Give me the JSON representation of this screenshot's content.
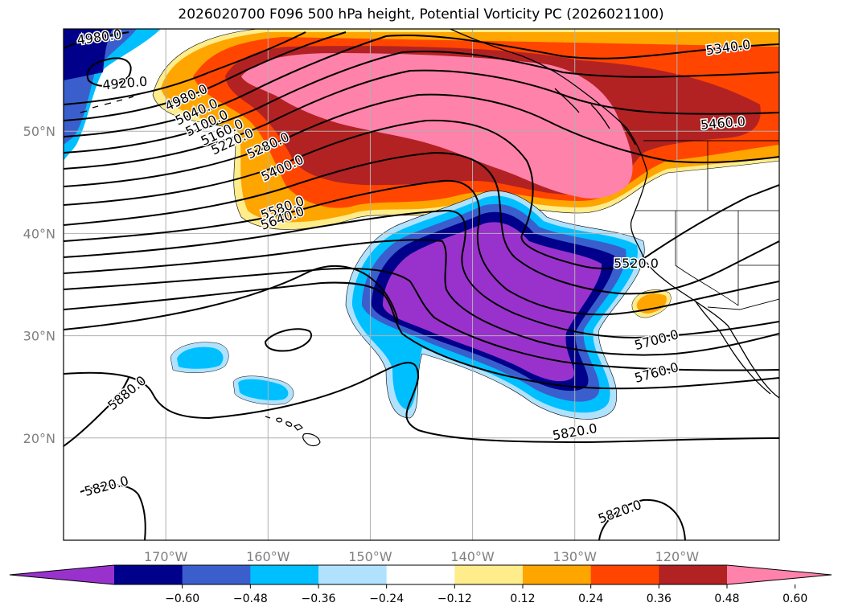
{
  "title": "2026020700 F096 500 hPa height, Potential Vorticity PC (2026021100)",
  "map": {
    "lon_range": [
      -180,
      -110
    ],
    "lat_range": [
      10,
      60
    ],
    "lon_ticks": [
      {
        "value": -170,
        "label": "170°W"
      },
      {
        "value": -160,
        "label": "160°W"
      },
      {
        "value": -150,
        "label": "150°W"
      },
      {
        "value": -140,
        "label": "140°W"
      },
      {
        "value": -130,
        "label": "130°W"
      },
      {
        "value": -120,
        "label": "120°W"
      }
    ],
    "lat_ticks": [
      {
        "value": 20,
        "label": "20°N"
      },
      {
        "value": 30,
        "label": "30°N"
      },
      {
        "value": 40,
        "label": "40°N"
      },
      {
        "value": 50,
        "label": "50°N"
      }
    ],
    "gridlines": true
  },
  "colorbar": {
    "colors": [
      "#9932cc",
      "#00008b",
      "#3a5fcd",
      "#00bfff",
      "#b0e2ff",
      "#ffffff",
      "#ffec8b",
      "#ffa500",
      "#ff4500",
      "#b22222",
      "#ff82ab"
    ],
    "ticks": [
      "−0.60",
      "−0.48",
      "−0.36",
      "−0.24",
      "−0.12",
      "0.12",
      "0.24",
      "0.36",
      "0.48",
      "0.60"
    ],
    "extend": "both"
  },
  "contour_labels": [
    {
      "text": "4980.0",
      "lon": -176.5,
      "lat": 59.2,
      "angle": -8
    },
    {
      "text": "4920.0",
      "lon": -174,
      "lat": 54.7,
      "angle": -5
    },
    {
      "text": "4980.0",
      "lon": -168,
      "lat": 53.3,
      "angle": -25
    },
    {
      "text": "5040.0",
      "lon": -167,
      "lat": 51.9,
      "angle": -25
    },
    {
      "text": "5100.0",
      "lon": -166,
      "lat": 50.8,
      "angle": -25
    },
    {
      "text": "5160.0",
      "lon": -164.5,
      "lat": 49.9,
      "angle": -25
    },
    {
      "text": "5220.0",
      "lon": -163.5,
      "lat": 49.0,
      "angle": -25
    },
    {
      "text": "5280.0",
      "lon": -160,
      "lat": 48.6,
      "angle": -25
    },
    {
      "text": "5400.0",
      "lon": -158.6,
      "lat": 46.4,
      "angle": -25
    },
    {
      "text": "5580.0",
      "lon": -158.6,
      "lat": 42.5,
      "angle": -20
    },
    {
      "text": "5640.0",
      "lon": -158.6,
      "lat": 41.5,
      "angle": -20
    },
    {
      "text": "5340.0",
      "lon": -115,
      "lat": 58.2,
      "angle": -8
    },
    {
      "text": "5460.0",
      "lon": -115.5,
      "lat": 50.8,
      "angle": -5
    },
    {
      "text": "5520.0",
      "lon": -124,
      "lat": 37.1,
      "angle": 0
    },
    {
      "text": "5700.0",
      "lon": -122,
      "lat": 29.6,
      "angle": -15
    },
    {
      "text": "5760.0",
      "lon": -122,
      "lat": 26.4,
      "angle": -15
    },
    {
      "text": "5880.0",
      "lon": -173.8,
      "lat": 24.4,
      "angle": -40
    },
    {
      "text": "5820.0",
      "lon": -130,
      "lat": 20.6,
      "angle": -10
    },
    {
      "text": "5820.0",
      "lon": -175.8,
      "lat": 15.3,
      "angle": -15
    },
    {
      "text": "5820.0",
      "lon": -125.6,
      "lat": 12.8,
      "angle": -20
    }
  ]
}
